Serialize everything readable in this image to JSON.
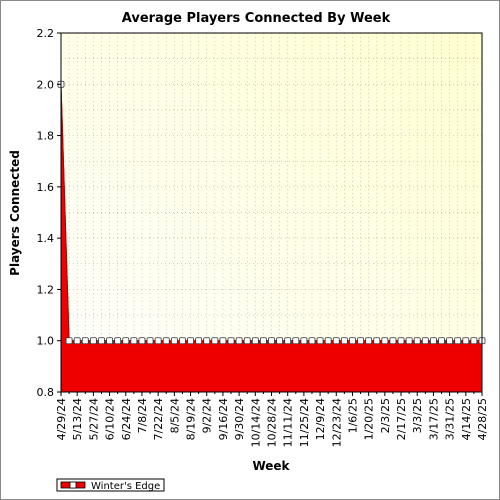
{
  "chart_data": {
    "type": "area",
    "title": "Average Players Connected By Week",
    "xlabel": "Week",
    "ylabel": "Players Connected",
    "ylim": [
      0.8,
      2.2
    ],
    "y_ticks": [
      "0.8",
      "1.0",
      "1.2",
      "1.4",
      "1.6",
      "1.8",
      "2.0",
      "2.2"
    ],
    "x_tick_labels": [
      "4/29/24",
      "5/13/24",
      "5/27/24",
      "6/10/24",
      "6/24/24",
      "7/8/24",
      "7/22/24",
      "8/5/24",
      "8/19/24",
      "9/2/24",
      "9/16/24",
      "9/30/24",
      "10/14/24",
      "10/28/24",
      "11/11/24",
      "11/25/24",
      "12/9/24",
      "12/23/24",
      "1/6/25",
      "1/20/25",
      "2/3/25",
      "2/17/25",
      "3/3/25",
      "3/17/25",
      "3/31/25",
      "4/14/25",
      "4/28/25"
    ],
    "grid": true,
    "legend_position": "bottom-left",
    "colors": {
      "series": "#ee0000",
      "plot_bg_top": "#ffffd0",
      "plot_bg_bottom": "#ffffff"
    },
    "series": [
      {
        "name": "Winter's Edge",
        "x": [
          "4/29/24",
          "5/6/24",
          "5/13/24",
          "5/20/24",
          "5/27/24",
          "6/3/24",
          "6/10/24",
          "6/17/24",
          "6/24/24",
          "7/1/24",
          "7/8/24",
          "7/15/24",
          "7/22/24",
          "7/29/24",
          "8/5/24",
          "8/12/24",
          "8/19/24",
          "8/26/24",
          "9/2/24",
          "9/9/24",
          "9/16/24",
          "9/23/24",
          "9/30/24",
          "10/7/24",
          "10/14/24",
          "10/21/24",
          "10/28/24",
          "11/4/24",
          "11/11/24",
          "11/18/24",
          "11/25/24",
          "12/2/24",
          "12/9/24",
          "12/16/24",
          "12/23/24",
          "12/30/24",
          "1/6/25",
          "1/13/25",
          "1/20/25",
          "1/27/25",
          "2/3/25",
          "2/10/25",
          "2/17/25",
          "2/24/25",
          "3/3/25",
          "3/10/25",
          "3/17/25",
          "3/24/25",
          "3/31/25",
          "4/7/25",
          "4/14/25",
          "4/21/25",
          "4/28/25"
        ],
        "values": [
          2.0,
          1.0,
          1.0,
          1.0,
          1.0,
          1.0,
          1.0,
          1.0,
          1.0,
          1.0,
          1.0,
          1.0,
          1.0,
          1.0,
          1.0,
          1.0,
          1.0,
          1.0,
          1.0,
          1.0,
          1.0,
          1.0,
          1.0,
          1.0,
          1.0,
          1.0,
          1.0,
          1.0,
          1.0,
          1.0,
          1.0,
          1.0,
          1.0,
          1.0,
          1.0,
          1.0,
          1.0,
          1.0,
          1.0,
          1.0,
          1.0,
          1.0,
          1.0,
          1.0,
          1.0,
          1.0,
          1.0,
          1.0,
          1.0,
          1.0,
          1.0,
          1.0,
          1.0
        ]
      }
    ]
  }
}
